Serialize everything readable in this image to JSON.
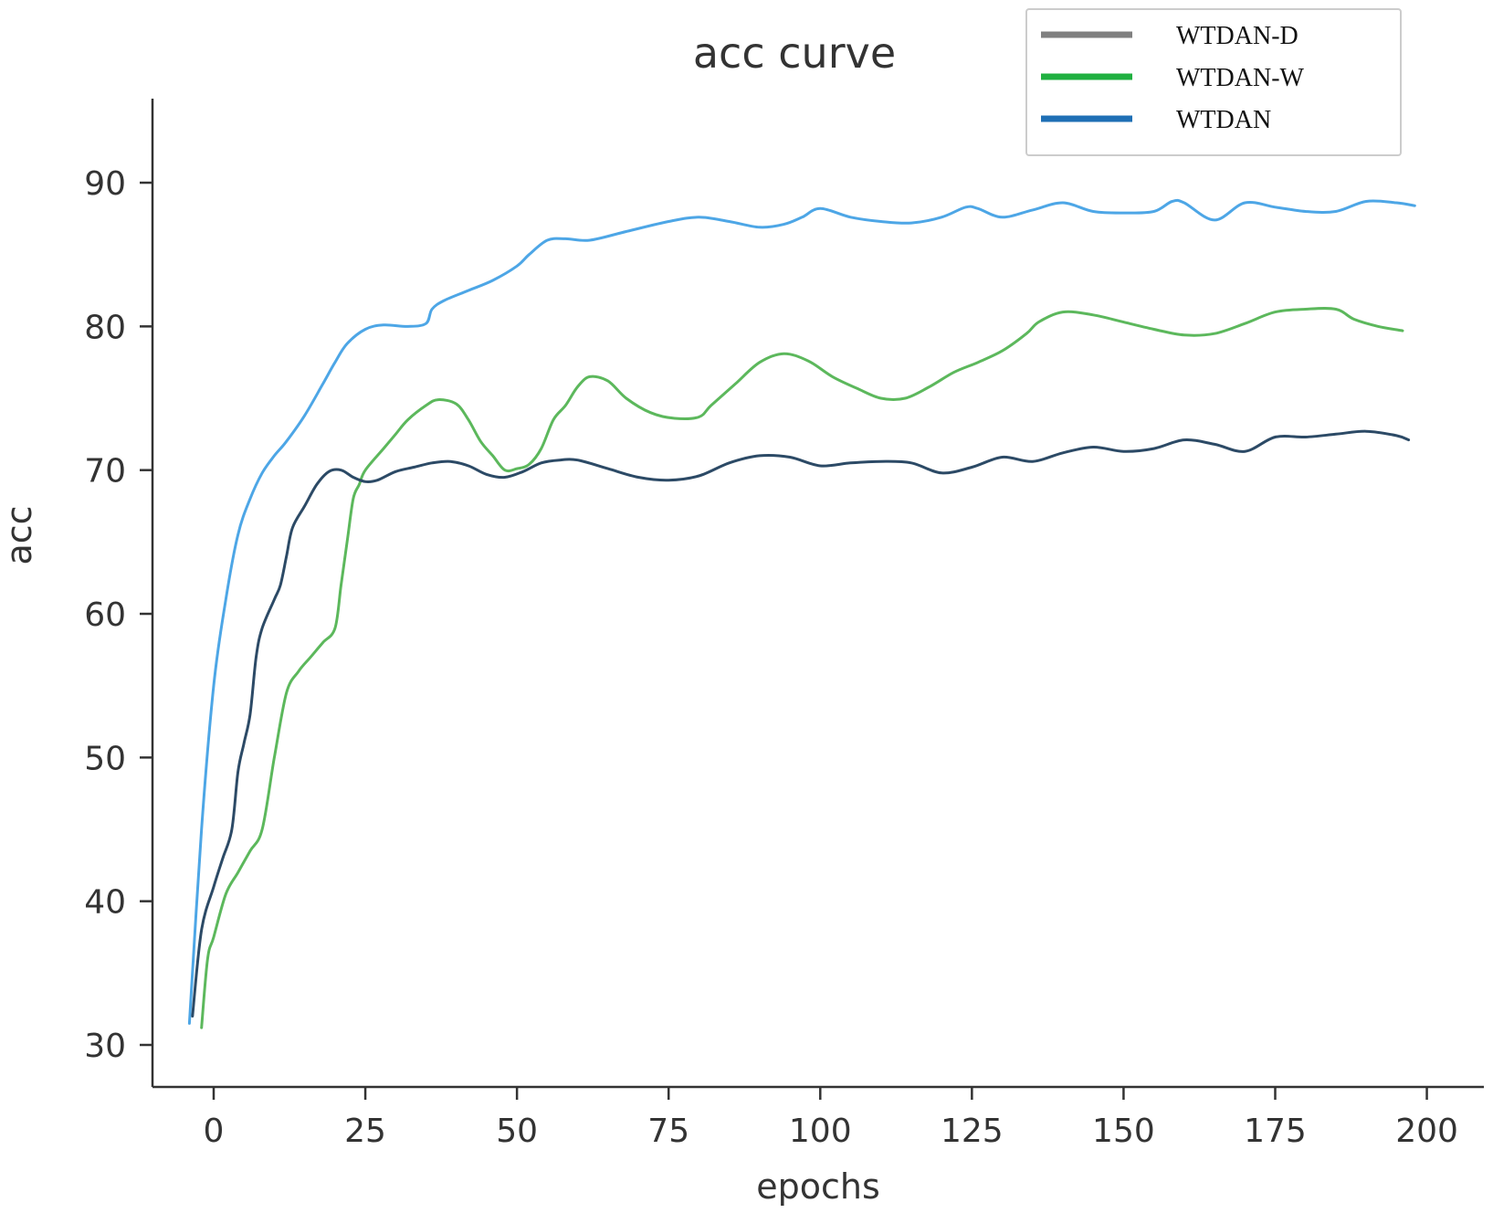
{
  "chart_data": {
    "type": "line",
    "title": "acc curve",
    "xlabel": "epochs",
    "ylabel": "acc",
    "xlim": [
      -6,
      210
    ],
    "ylim": [
      28,
      95
    ],
    "xticks": [
      0,
      25,
      50,
      75,
      100,
      125,
      150,
      175,
      200
    ],
    "yticks": [
      30,
      40,
      50,
      60,
      70,
      80,
      90
    ],
    "legend_position": "top-right",
    "series": [
      {
        "name": "WTDAN",
        "color": "#4da6e6",
        "legend_color": "#1f6fb5",
        "x": [
          -4,
          -2,
          0,
          2,
          4,
          6,
          8,
          10,
          12,
          15,
          18,
          20,
          22,
          25,
          28,
          32,
          35,
          36,
          38,
          42,
          46,
          50,
          52,
          55,
          58,
          62,
          68,
          75,
          80,
          85,
          90,
          94,
          97,
          100,
          105,
          110,
          115,
          120,
          124,
          126,
          130,
          135,
          140,
          145,
          150,
          155,
          158,
          160,
          165,
          170,
          175,
          180,
          185,
          190,
          195,
          198
        ],
        "values": [
          31.5,
          45,
          55,
          61,
          65.5,
          68,
          69.8,
          71,
          72,
          73.8,
          76,
          77.5,
          78.8,
          79.8,
          80.1,
          80,
          80.2,
          81.2,
          81.8,
          82.5,
          83.2,
          84.2,
          85,
          86,
          86.1,
          86,
          86.6,
          87.3,
          87.6,
          87.3,
          86.9,
          87.1,
          87.6,
          88.2,
          87.6,
          87.3,
          87.2,
          87.6,
          88.3,
          88.2,
          87.6,
          88.1,
          88.6,
          88,
          87.9,
          88,
          88.7,
          88.6,
          87.4,
          88.6,
          88.3,
          88,
          88,
          88.7,
          88.6,
          88.4
        ]
      },
      {
        "name": "WTDAN-W",
        "color": "#5cb85c",
        "legend_color": "#20b040",
        "x": [
          -2,
          -1,
          0,
          2,
          4,
          6,
          8,
          10,
          12,
          14,
          16,
          18,
          20,
          21,
          22,
          23,
          24,
          25,
          28,
          30,
          32,
          35,
          37,
          40,
          42,
          44,
          46,
          48,
          50,
          52,
          54,
          56,
          58,
          60,
          62,
          65,
          68,
          72,
          76,
          80,
          82,
          86,
          90,
          94,
          98,
          102,
          106,
          110,
          114,
          118,
          122,
          126,
          130,
          134,
          136,
          140,
          145,
          150,
          155,
          160,
          165,
          170,
          175,
          180,
          185,
          188,
          192,
          196
        ],
        "values": [
          31.2,
          36,
          37.5,
          40.5,
          42,
          43.5,
          45,
          50,
          54.5,
          56,
          57,
          58,
          59,
          62,
          65,
          68,
          69,
          70,
          71.5,
          72.5,
          73.5,
          74.5,
          74.9,
          74.6,
          73.5,
          72,
          71,
          70,
          70.1,
          70.4,
          71.5,
          73.5,
          74.5,
          75.8,
          76.5,
          76.2,
          75,
          74,
          73.6,
          73.7,
          74.5,
          76,
          77.5,
          78.1,
          77.6,
          76.5,
          75.7,
          75,
          75,
          75.8,
          76.8,
          77.5,
          78.3,
          79.5,
          80.3,
          81,
          80.8,
          80.3,
          79.8,
          79.4,
          79.5,
          80.2,
          81,
          81.2,
          81.2,
          80.5,
          80,
          79.7
        ]
      },
      {
        "name": "WTDAN-D",
        "color": "#2c4a66",
        "legend_color": "#808080",
        "x": [
          -3.5,
          -2,
          0,
          1.5,
          3,
          4,
          5,
          6,
          7,
          8,
          10,
          11,
          12,
          13,
          15,
          17,
          19,
          21,
          23,
          25,
          27,
          30,
          33,
          36,
          39,
          42,
          45,
          48,
          51,
          54,
          57,
          60,
          65,
          70,
          75,
          80,
          85,
          90,
          95,
          100,
          105,
          110,
          115,
          120,
          125,
          130,
          135,
          140,
          145,
          150,
          155,
          160,
          165,
          170,
          175,
          180,
          185,
          190,
          195,
          197
        ],
        "values": [
          32,
          38,
          41,
          43,
          45,
          49,
          51,
          53,
          57,
          59,
          61,
          62,
          64,
          66,
          67.5,
          69,
          69.9,
          70,
          69.5,
          69.2,
          69.3,
          69.9,
          70.2,
          70.5,
          70.6,
          70.3,
          69.7,
          69.5,
          69.9,
          70.5,
          70.7,
          70.7,
          70.1,
          69.5,
          69.3,
          69.6,
          70.5,
          71,
          70.9,
          70.3,
          70.5,
          70.6,
          70.5,
          69.8,
          70.2,
          70.9,
          70.6,
          71.2,
          71.6,
          71.3,
          71.5,
          72.1,
          71.8,
          71.3,
          72.3,
          72.3,
          72.5,
          72.7,
          72.4,
          72.1
        ]
      }
    ]
  }
}
